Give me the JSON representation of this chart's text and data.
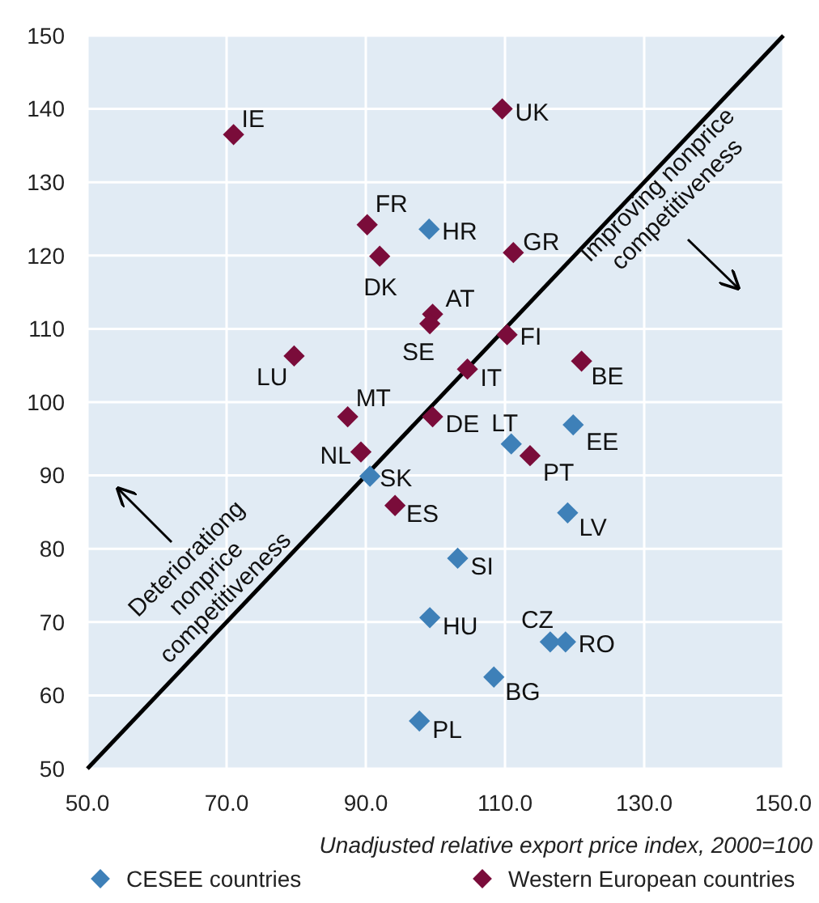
{
  "chart_data": {
    "type": "scatter",
    "xlabel": "Unadjusted relative export price index, 2000=100",
    "xlim": [
      50,
      150
    ],
    "xticks": [
      {
        "value": 50,
        "label": "50.0"
      },
      {
        "value": 70,
        "label": "70.0"
      },
      {
        "value": 90,
        "label": "90.0"
      },
      {
        "value": 110,
        "label": "110.0"
      },
      {
        "value": 130,
        "label": "130.0"
      },
      {
        "value": 150,
        "label": "150.0"
      }
    ],
    "ylim": [
      50,
      150
    ],
    "yticks": [
      50,
      60,
      70,
      80,
      90,
      100,
      110,
      120,
      130,
      140,
      150
    ],
    "grid": true,
    "legend": "bottom",
    "marker": "diamond",
    "series": [
      {
        "name": "CESEE countries",
        "color": "#3e80b8",
        "x": [
          99.1,
          110.9,
          119.8,
          119.0,
          90.6,
          103.2,
          99.2,
          116.5,
          118.7,
          108.4,
          97.7
        ],
        "values": [
          123.6,
          94.3,
          96.9,
          84.9,
          89.9,
          78.7,
          70.6,
          67.3,
          67.3,
          62.5,
          56.5
        ]
      },
      {
        "name": "Western European countries",
        "color": "#7a0c3a",
        "x": [
          71.0,
          90.2,
          92.0,
          79.7,
          87.4,
          99.6,
          99.2,
          109.6,
          111.2,
          110.3,
          104.6,
          121.0,
          99.6,
          89.3,
          94.2,
          113.6
        ],
        "values": [
          136.5,
          124.2,
          119.9,
          106.3,
          98.0,
          112.0,
          110.7,
          140.0,
          120.4,
          109.2,
          104.5,
          105.6,
          98.0,
          93.2,
          85.9,
          92.7
        ]
      },
      {
        "type": "line",
        "color": "#000000",
        "x": [
          50,
          150
        ],
        "values": [
          50,
          150
        ],
        "marker": "none",
        "line_style": "solid"
      }
    ],
    "annotations": [
      {
        "text": "HR",
        "x": 99.1,
        "y": 123.6
      },
      {
        "text": "LT",
        "x": 110.9,
        "y": 94.3
      },
      {
        "text": "EE",
        "x": 119.8,
        "y": 96.9
      },
      {
        "text": "LV",
        "x": 119.0,
        "y": 84.9
      },
      {
        "text": "SK",
        "x": 90.6,
        "y": 89.9
      },
      {
        "text": "SI",
        "x": 103.2,
        "y": 78.7
      },
      {
        "text": "HU",
        "x": 99.2,
        "y": 70.6
      },
      {
        "text": "CZ",
        "x": 116.5,
        "y": 67.3
      },
      {
        "text": "RO",
        "x": 118.7,
        "y": 67.3
      },
      {
        "text": "BG",
        "x": 108.4,
        "y": 62.5
      },
      {
        "text": "PL",
        "x": 97.7,
        "y": 56.5
      },
      {
        "text": "IE",
        "x": 71.0,
        "y": 136.5
      },
      {
        "text": "FR",
        "x": 90.2,
        "y": 124.2
      },
      {
        "text": "DK",
        "x": 92.0,
        "y": 119.9
      },
      {
        "text": "LU",
        "x": 79.7,
        "y": 106.3
      },
      {
        "text": "MT",
        "x": 87.4,
        "y": 98.0
      },
      {
        "text": "AT",
        "x": 99.6,
        "y": 112.0
      },
      {
        "text": "SE",
        "x": 99.2,
        "y": 110.7
      },
      {
        "text": "UK",
        "x": 109.6,
        "y": 140.0
      },
      {
        "text": "GR",
        "x": 111.2,
        "y": 120.4
      },
      {
        "text": "FI",
        "x": 110.3,
        "y": 109.2
      },
      {
        "text": "IT",
        "x": 104.6,
        "y": 104.5
      },
      {
        "text": "BE",
        "x": 121.0,
        "y": 105.6
      },
      {
        "text": "DE",
        "x": 99.6,
        "y": 98.0
      },
      {
        "text": "NL",
        "x": 89.3,
        "y": 93.2
      },
      {
        "text": "ES",
        "x": 94.2,
        "y": 85.9
      },
      {
        "text": "PT",
        "x": 113.6,
        "y": 92.7
      },
      "Improving nonprice\ncompetitiveness",
      "Deteriorationg\nnonprice\ncompetitiveness"
    ]
  }
}
